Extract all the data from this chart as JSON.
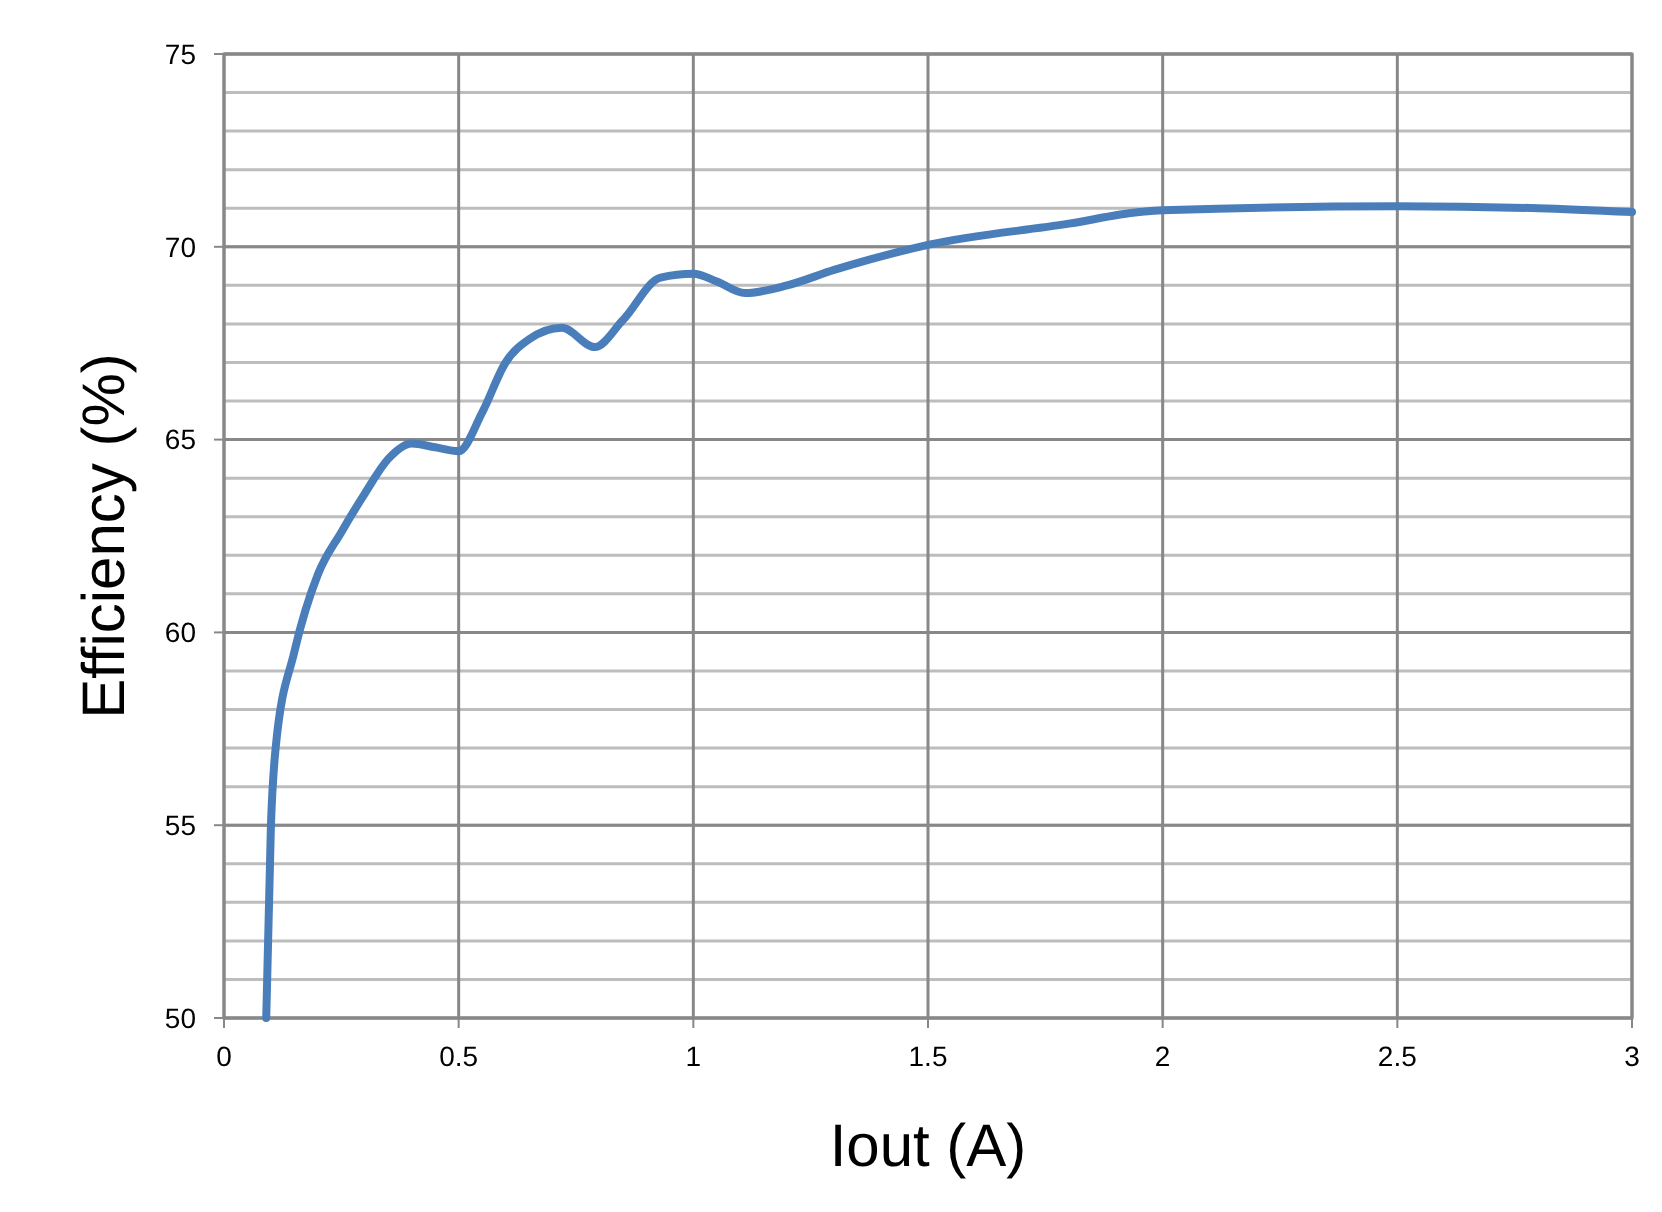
{
  "chart_data": {
    "type": "line",
    "xlabel": "Iout (A)",
    "ylabel": "Efficiency (%)",
    "xlim": [
      0,
      3
    ],
    "xticks": [
      0,
      0.5,
      1,
      1.5,
      2,
      2.5,
      3
    ],
    "ylim": [
      50,
      75
    ],
    "yticks": [
      50,
      55,
      60,
      65,
      70,
      75
    ],
    "grid": true,
    "marker": "none",
    "line_style": "solid",
    "series": [
      {
        "color": "#4a7ebb",
        "x": [
          0.09,
          0.1,
          0.11,
          0.15,
          0.2,
          0.25,
          0.3,
          0.35,
          0.4,
          0.45,
          0.5,
          0.55,
          0.6,
          0.65,
          0.72,
          0.79,
          0.85,
          0.93,
          1.0,
          1.05,
          1.11,
          1.2,
          1.3,
          1.5,
          1.8,
          1.95,
          2.0,
          2.5,
          2.8,
          3.0
        ],
        "values": [
          50,
          55,
          57,
          59.5,
          61.5,
          62.6,
          63.6,
          64.5,
          64.9,
          64.8,
          64.7,
          65.7,
          67.0,
          67.6,
          67.9,
          67.4,
          68.1,
          69.2,
          69.3,
          69.1,
          68.8,
          69.0,
          69.4,
          70.05,
          70.6,
          70.9,
          70.95,
          71.05,
          71.0,
          70.9
        ]
      }
    ]
  }
}
